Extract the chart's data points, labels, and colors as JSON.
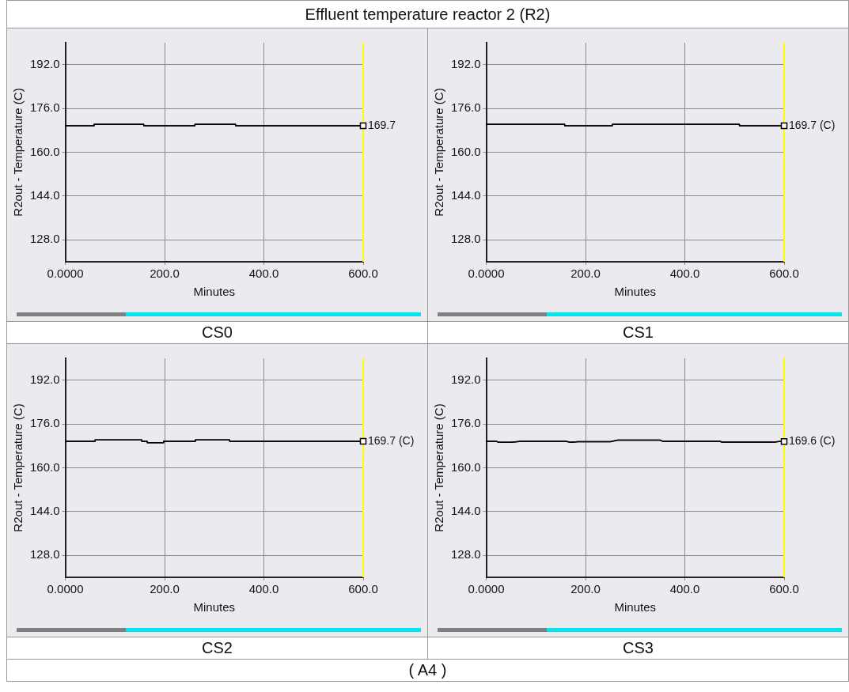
{
  "chart_data": [
    {
      "type": "line",
      "title": "Effluent temperature reactor 2 (R2)",
      "subtitle": "CS0",
      "xlabel": "Minutes",
      "ylabel": "R2out - Temperature (C)",
      "xlim": [
        0,
        600
      ],
      "ylim": [
        120,
        200
      ],
      "xticks": [
        {
          "value": 0,
          "label": "0.0000"
        },
        {
          "value": 200,
          "label": "200.0"
        },
        {
          "value": 400,
          "label": "400.0"
        },
        {
          "value": 600,
          "label": "600.0"
        }
      ],
      "yticks": [
        {
          "value": 128,
          "label": "128.0"
        },
        {
          "value": 144,
          "label": "144.0"
        },
        {
          "value": 160,
          "label": "160.0"
        },
        {
          "value": 176,
          "label": "176.0"
        },
        {
          "value": 192,
          "label": "192.0"
        }
      ],
      "grid": true,
      "legend": false,
      "series": [
        {
          "color": "#000000",
          "x": [
            0,
            58,
            58,
            158,
            158,
            261,
            261,
            343,
            343,
            600
          ],
          "values": [
            169.7,
            169.7,
            170.2,
            170.2,
            169.7,
            169.7,
            170.2,
            170.2,
            169.7,
            169.7
          ],
          "value_labels": [
            null,
            null,
            null,
            null,
            null,
            null,
            null,
            null,
            null,
            "169.7"
          ]
        }
      ],
      "ref_lines": [
        {
          "axis": "x",
          "value": 600,
          "color": "#ffff00"
        }
      ]
    },
    {
      "type": "line",
      "subtitle": "CS1",
      "xlabel": "Minutes",
      "ylabel": "R2out - Temperature (C)",
      "xlim": [
        0,
        600
      ],
      "ylim": [
        120,
        200
      ],
      "xticks": [
        {
          "value": 0,
          "label": "0.0000"
        },
        {
          "value": 200,
          "label": "200.0"
        },
        {
          "value": 400,
          "label": "400.0"
        },
        {
          "value": 600,
          "label": "600.0"
        }
      ],
      "yticks": [
        {
          "value": 128,
          "label": "128.0"
        },
        {
          "value": 144,
          "label": "144.0"
        },
        {
          "value": 160,
          "label": "160.0"
        },
        {
          "value": 176,
          "label": "176.0"
        },
        {
          "value": 192,
          "label": "192.0"
        }
      ],
      "grid": true,
      "legend": false,
      "series": [
        {
          "color": "#000000",
          "x": [
            0,
            158,
            158,
            254,
            254,
            510,
            510,
            600
          ],
          "values": [
            170.2,
            170.2,
            169.7,
            169.7,
            170.2,
            170.2,
            169.7,
            169.7
          ],
          "value_labels": [
            null,
            null,
            null,
            null,
            null,
            null,
            null,
            "169.7 (C)"
          ]
        }
      ],
      "ref_lines": [
        {
          "axis": "x",
          "value": 600,
          "color": "#ffff00"
        }
      ]
    },
    {
      "type": "line",
      "subtitle": "CS2",
      "xlabel": "Minutes",
      "ylabel": "R2out - Temperature (C)",
      "xlim": [
        0,
        600
      ],
      "ylim": [
        120,
        200
      ],
      "xticks": [
        {
          "value": 0,
          "label": "0.0000"
        },
        {
          "value": 200,
          "label": "200.0"
        },
        {
          "value": 400,
          "label": "400.0"
        },
        {
          "value": 600,
          "label": "600.0"
        }
      ],
      "yticks": [
        {
          "value": 128,
          "label": "128.0"
        },
        {
          "value": 144,
          "label": "144.0"
        },
        {
          "value": 160,
          "label": "160.0"
        },
        {
          "value": 176,
          "label": "176.0"
        },
        {
          "value": 192,
          "label": "192.0"
        }
      ],
      "grid": true,
      "legend": false,
      "series": [
        {
          "color": "#000000",
          "x": [
            0,
            60,
            60,
            154,
            154,
            165,
            165,
            198,
            198,
            262,
            262,
            331,
            331,
            600
          ],
          "values": [
            169.7,
            169.7,
            170.2,
            170.2,
            169.7,
            169.7,
            169.2,
            169.2,
            169.7,
            169.7,
            170.2,
            170.2,
            169.7,
            169.7
          ],
          "value_labels": [
            null,
            null,
            null,
            null,
            null,
            null,
            null,
            null,
            null,
            null,
            null,
            null,
            null,
            "169.7 (C)"
          ]
        }
      ],
      "ref_lines": [
        {
          "axis": "x",
          "value": 600,
          "color": "#ffff00"
        }
      ]
    },
    {
      "type": "line",
      "subtitle": "CS3",
      "xlabel": "Minutes",
      "ylabel": "R2out - Temperature (C)",
      "xlim": [
        0,
        600
      ],
      "ylim": [
        120,
        200
      ],
      "xticks": [
        {
          "value": 0,
          "label": "0.0000"
        },
        {
          "value": 200,
          "label": "200.0"
        },
        {
          "value": 400,
          "label": "400.0"
        },
        {
          "value": 600,
          "label": "600.0"
        }
      ],
      "yticks": [
        {
          "value": 128,
          "label": "128.0"
        },
        {
          "value": 144,
          "label": "144.0"
        },
        {
          "value": 160,
          "label": "160.0"
        },
        {
          "value": 176,
          "label": "176.0"
        },
        {
          "value": 192,
          "label": "192.0"
        }
      ],
      "grid": true,
      "legend": false,
      "series": [
        {
          "color": "#000000",
          "x": [
            0,
            20,
            25,
            50,
            70,
            160,
            170,
            185,
            250,
            265,
            350,
            355,
            470,
            475,
            580,
            590,
            600
          ],
          "values": [
            169.7,
            169.7,
            169.3,
            169.3,
            169.7,
            169.7,
            169.3,
            169.5,
            169.5,
            170.1,
            170.1,
            169.7,
            169.7,
            169.4,
            169.4,
            169.6,
            169.6
          ],
          "value_labels": [
            null,
            null,
            null,
            null,
            null,
            null,
            null,
            null,
            null,
            null,
            null,
            null,
            null,
            null,
            null,
            null,
            "169.6 (C)"
          ]
        }
      ],
      "ref_lines": [
        {
          "axis": "x",
          "value": 600,
          "color": "#ffff00"
        }
      ],
      "annotations": [
        "( A4 )"
      ]
    }
  ]
}
